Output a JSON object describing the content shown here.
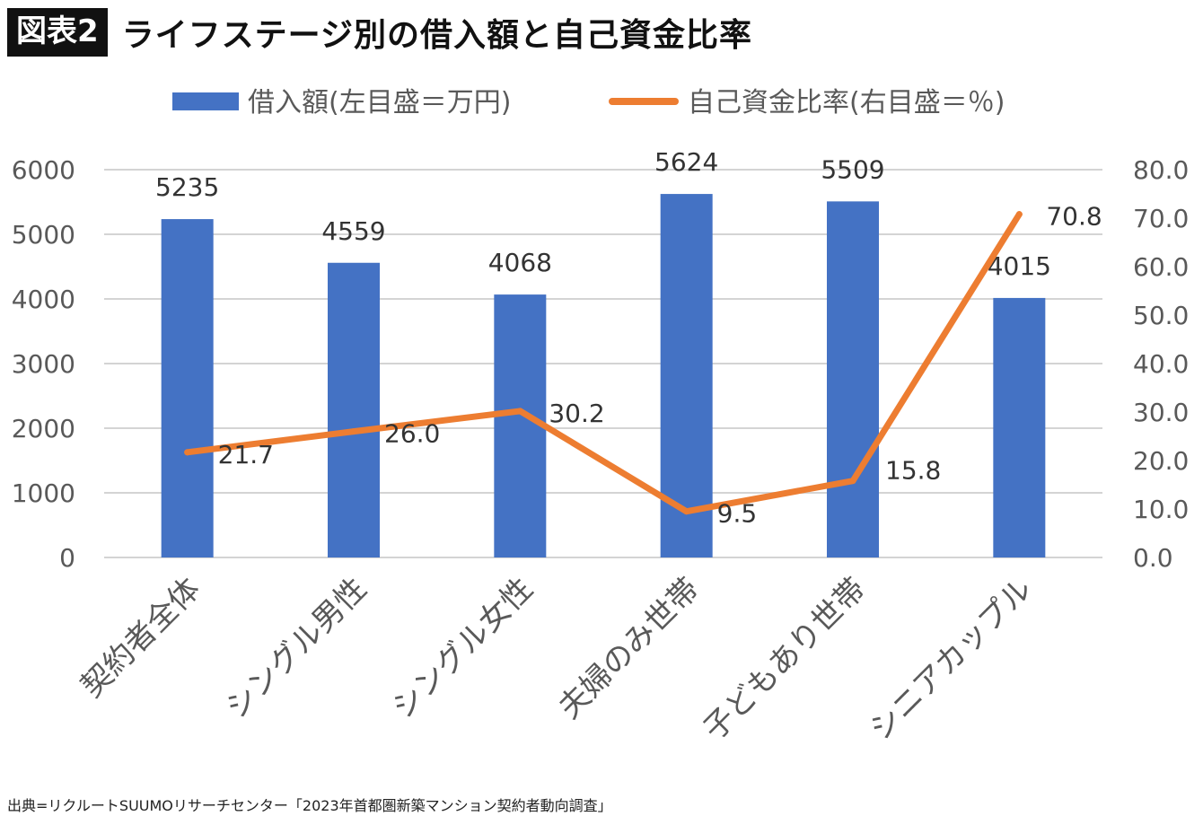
{
  "header": {
    "tag": "図表2",
    "title": "ライフステージ別の借入額と自己資金比率"
  },
  "source": "出典=リクルートSUUMOリサーチセンター「2023年首都圏新築マンション契約者動向調査」",
  "chart_data": {
    "type": "bar",
    "categories": [
      "契約者全体",
      "シングル男性",
      "シングル女性",
      "夫婦のみ世帯",
      "子どもあり世帯",
      "シニアカップル"
    ],
    "series": [
      {
        "name": "借入額(左目盛＝万円)",
        "type": "bar",
        "axis": "left",
        "color": "#4472C4",
        "values": [
          5235,
          4559,
          4068,
          5624,
          5509,
          4015
        ],
        "labels": [
          "5235",
          "4559",
          "4068",
          "5624",
          "5509",
          "4015"
        ]
      },
      {
        "name": "自己資金比率(右目盛＝％)",
        "type": "line",
        "axis": "right",
        "color": "#ED7D31",
        "values": [
          21.7,
          26.0,
          30.2,
          9.5,
          15.8,
          70.8
        ],
        "labels": [
          "21.7",
          "26.0",
          "30.2",
          "9.5",
          "15.8",
          "70.8"
        ]
      }
    ],
    "y_left": {
      "min": 0,
      "max": 6000,
      "ticks": [
        "0",
        "1000",
        "2000",
        "3000",
        "4000",
        "5000",
        "6000"
      ]
    },
    "y_right": {
      "min": 0,
      "max": 80,
      "ticks": [
        "0.0",
        "10.0",
        "20.0",
        "30.0",
        "40.0",
        "50.0",
        "60.0",
        "70.0",
        "80.0"
      ]
    },
    "grid": true,
    "legend_position": "top"
  }
}
